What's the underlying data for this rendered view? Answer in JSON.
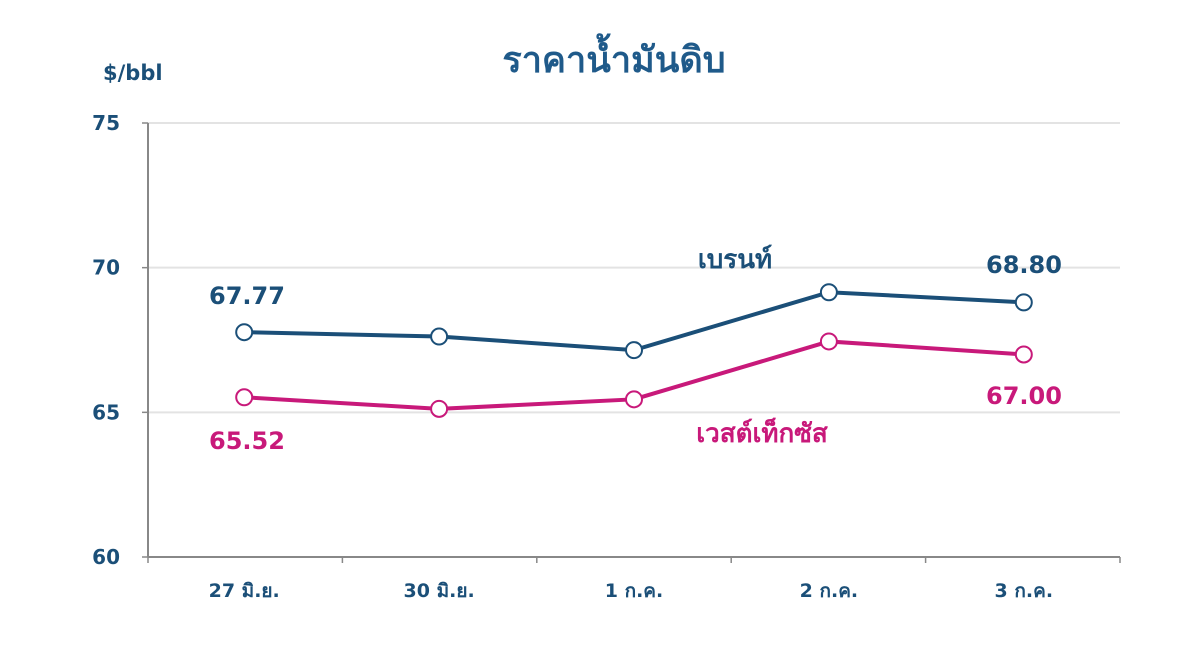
{
  "chart_data": {
    "type": "line",
    "title": "ราคาน้ำมันดิบ",
    "ylabel": "$/bbl",
    "xlabel": "",
    "ylim": [
      60,
      75
    ],
    "yticks": [
      "60",
      "65",
      "70",
      "75"
    ],
    "grid": true,
    "categories": [
      "27 มิ.ย.",
      "30 มิ.ย.",
      "1 ก.ค.",
      "2 ก.ค.",
      "3 ก.ค."
    ],
    "series": [
      {
        "name": "เบรนท์",
        "color": "#1b4f78",
        "values": [
          67.77,
          67.62,
          67.15,
          69.15,
          68.8
        ],
        "labels": {
          "first": "67.77",
          "last": "68.80"
        }
      },
      {
        "name": "เวสต์เท็กซัส",
        "color": "#c8197a",
        "values": [
          65.52,
          65.12,
          65.45,
          67.45,
          67.0
        ],
        "labels": {
          "first": "65.52",
          "last": "67.00"
        }
      }
    ],
    "colors": {
      "title": "#1f5a8a",
      "axis": "#1b4f78",
      "grid": "#e3e3e3"
    }
  }
}
